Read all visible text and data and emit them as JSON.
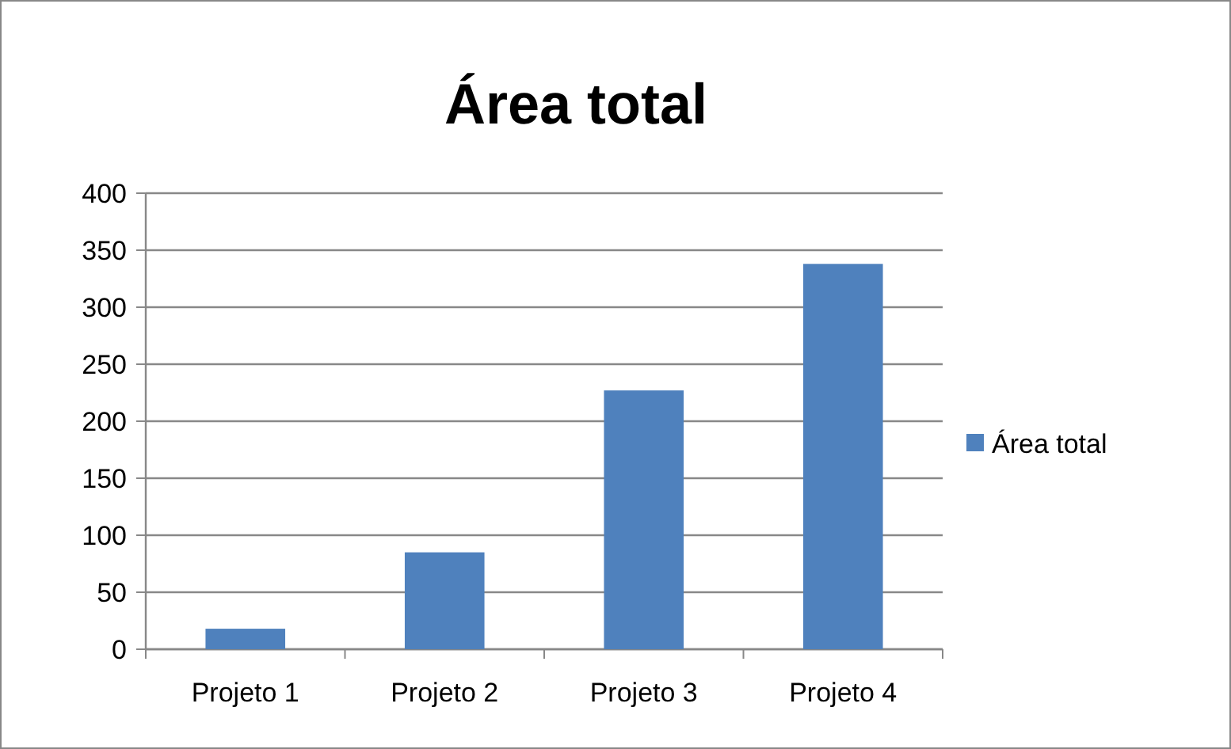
{
  "chart_data": {
    "type": "bar",
    "title": "Área total",
    "categories": [
      "Projeto 1",
      "Projeto 2",
      "Projeto 3",
      "Projeto 4"
    ],
    "series": [
      {
        "name": "Área total",
        "color": "#4f81bd",
        "values": [
          18,
          85,
          227,
          338
        ]
      }
    ],
    "ylim": [
      0,
      400
    ],
    "yticks": [
      0,
      50,
      100,
      150,
      200,
      250,
      300,
      350,
      400
    ],
    "grid": "y",
    "legend": "right"
  }
}
